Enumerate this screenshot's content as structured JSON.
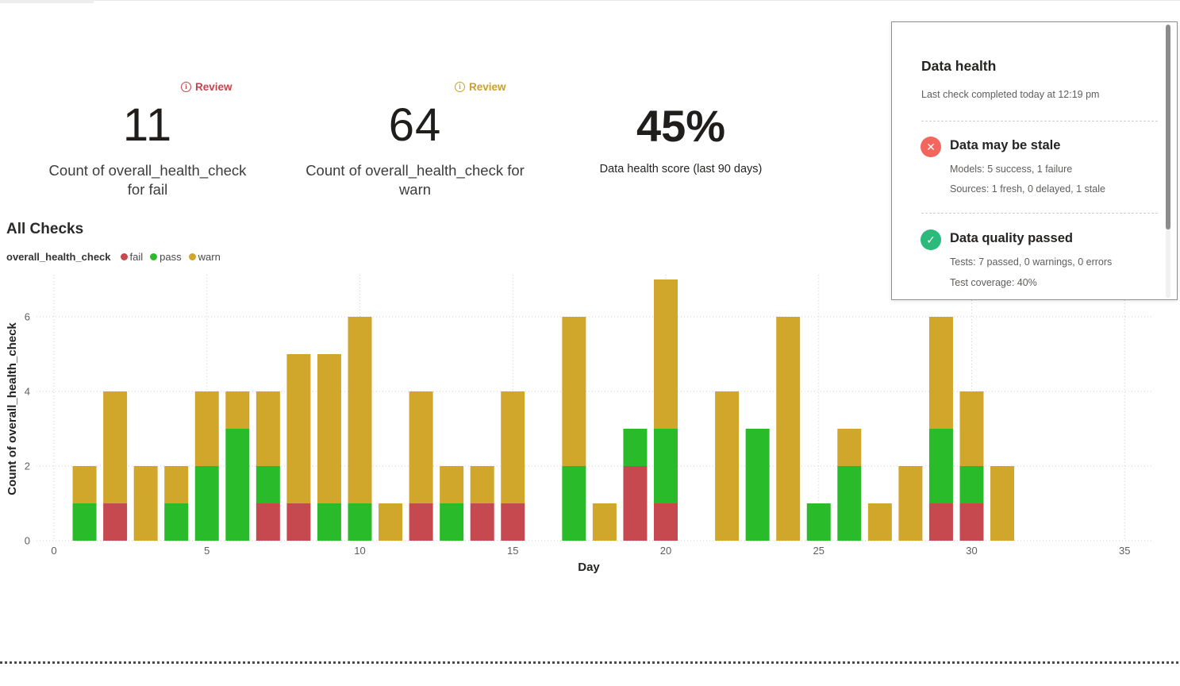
{
  "colors": {
    "fail": "#c6494f",
    "pass": "#2abb2a",
    "warn": "#d0a62b",
    "review_fail": "#c4444e",
    "review_warn": "#c9a127",
    "stale_icon_bg": "#f2665e",
    "passed_icon_bg": "#2cba7c"
  },
  "metrics": [
    {
      "review_label": "Review",
      "review_color": "#c4444e",
      "value": "11",
      "label": "Count of overall_health_check for fail"
    },
    {
      "review_label": "Review",
      "review_color": "#c9a127",
      "value": "64",
      "label": "Count of overall_health_check for warn"
    },
    {
      "value": "45%",
      "label": "Data health score (last 90 days)"
    }
  ],
  "all_checks": {
    "title": "All Checks",
    "series_label": "overall_health_check",
    "legend": [
      {
        "label": "fail",
        "color": "#c6494f"
      },
      {
        "label": "pass",
        "color": "#2abb2a"
      },
      {
        "label": "warn",
        "color": "#d0a62b"
      }
    ]
  },
  "chart_data": {
    "type": "bar",
    "stacked": true,
    "title": "All Checks",
    "xlabel": "Day",
    "ylabel": "Count of overall_health_check",
    "xlim": [
      0,
      35.5
    ],
    "ylim": [
      0,
      7.2
    ],
    "xticks": [
      0,
      5,
      10,
      15,
      20,
      25,
      30,
      35
    ],
    "yticks": [
      0,
      2,
      4,
      6
    ],
    "grid": "dotted",
    "legend_position": "top-left",
    "x": [
      1,
      2,
      3,
      4,
      5,
      6,
      7,
      8,
      9,
      10,
      11,
      12,
      13,
      14,
      15,
      16,
      17,
      18,
      19,
      20,
      21,
      22,
      23,
      24,
      25,
      26,
      27,
      28,
      29,
      30,
      31
    ],
    "series": [
      {
        "name": "fail",
        "color": "#c6494f",
        "values": [
          0,
          1,
          0,
          0,
          0,
          0,
          1,
          1,
          0,
          0,
          0,
          1,
          0,
          1,
          1,
          0,
          0,
          0,
          2,
          1,
          0,
          0,
          0,
          0,
          0,
          0,
          0,
          0,
          1,
          1,
          0
        ]
      },
      {
        "name": "pass",
        "color": "#2abb2a",
        "values": [
          1,
          0,
          0,
          1,
          2,
          3,
          1,
          0,
          1,
          1,
          0,
          0,
          1,
          0,
          0,
          0,
          2,
          0,
          1,
          2,
          0,
          0,
          3,
          0,
          1,
          2,
          0,
          0,
          2,
          1,
          0
        ]
      },
      {
        "name": "warn",
        "color": "#d0a62b",
        "values": [
          1,
          3,
          2,
          1,
          2,
          1,
          2,
          4,
          4,
          5,
          1,
          3,
          1,
          1,
          3,
          0,
          4,
          1,
          0,
          4,
          0,
          4,
          0,
          6,
          0,
          1,
          1,
          2,
          3,
          2,
          2
        ]
      }
    ]
  },
  "data_health_panel": {
    "title": "Data health",
    "subtitle": "Last check completed today at 12:19 pm",
    "items": [
      {
        "icon": "✕",
        "icon_bg": "#f2665e",
        "title": "Data may be stale",
        "lines": [
          "Models: 5 success, 1 failure",
          "Sources: 1 fresh, 0 delayed, 1 stale"
        ]
      },
      {
        "icon": "✓",
        "icon_bg": "#2cba7c",
        "title": "Data quality passed",
        "lines": [
          "Tests: 7 passed, 0 warnings, 0 errors",
          "Test coverage: 40%"
        ]
      }
    ]
  }
}
